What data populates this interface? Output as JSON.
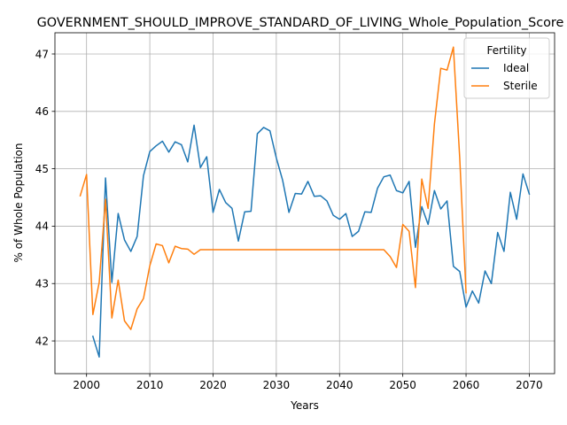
{
  "chart_data": {
    "type": "line",
    "title": "GOVERNMENT_SHOULD_IMPROVE_STANDARD_OF_LIVING_Whole_Population_Score",
    "xlabel": "Years",
    "ylabel": "% of Whole Population",
    "xlim": [
      1995,
      2074
    ],
    "ylim": [
      41.43,
      47.37
    ],
    "xticks": [
      2000,
      2010,
      2020,
      2030,
      2040,
      2050,
      2060,
      2070
    ],
    "yticks": [
      42,
      43,
      44,
      45,
      46,
      47
    ],
    "grid": true,
    "legend": {
      "title": "Fertility",
      "placement": "top-right"
    },
    "series": [
      {
        "name": "Ideal",
        "color": "#1f77b4",
        "x": [
          2001,
          2002,
          2003,
          2004,
          2005,
          2006,
          2007,
          2008,
          2009,
          2010,
          2011,
          2012,
          2013,
          2014,
          2015,
          2016,
          2017,
          2018,
          2019,
          2020,
          2021,
          2022,
          2023,
          2024,
          2025,
          2026,
          2027,
          2028,
          2029,
          2030,
          2031,
          2032,
          2033,
          2034,
          2035,
          2036,
          2037,
          2038,
          2039,
          2040,
          2041,
          2042,
          2043,
          2044,
          2045,
          2046,
          2047,
          2048,
          2049,
          2050,
          2051,
          2052,
          2053,
          2054,
          2055,
          2056,
          2057,
          2058,
          2059,
          2060,
          2061,
          2062,
          2063,
          2064,
          2065,
          2066,
          2067,
          2068,
          2069,
          2070
        ],
        "values": [
          42.08,
          41.72,
          44.84,
          43.02,
          44.22,
          43.76,
          43.56,
          43.82,
          44.88,
          45.3,
          45.4,
          45.48,
          45.29,
          45.47,
          45.42,
          45.12,
          45.76,
          45.02,
          45.21,
          44.24,
          44.64,
          44.41,
          44.31,
          43.74,
          44.25,
          44.26,
          45.61,
          45.72,
          45.66,
          45.19,
          44.8,
          44.24,
          44.57,
          44.56,
          44.78,
          44.52,
          44.53,
          44.44,
          44.19,
          44.12,
          44.22,
          43.82,
          43.91,
          44.25,
          44.24,
          44.66,
          44.86,
          44.89,
          44.62,
          44.58,
          44.78,
          43.63,
          44.34,
          44.03,
          44.62,
          44.3,
          44.44,
          43.3,
          43.21,
          42.59,
          42.87,
          42.66,
          43.22,
          43.0,
          43.89,
          43.56,
          44.59,
          44.12,
          44.91,
          44.56
        ]
      },
      {
        "name": "Sterile",
        "color": "#ff7f0e",
        "x": [
          1999,
          2000,
          2001,
          2002,
          2003,
          2004,
          2005,
          2006,
          2007,
          2008,
          2009,
          2010,
          2011,
          2012,
          2013,
          2014,
          2015,
          2016,
          2017,
          2018,
          2019,
          2020,
          2021,
          2022,
          2023,
          2024,
          2025,
          2026,
          2027,
          2028,
          2029,
          2030,
          2031,
          2032,
          2033,
          2034,
          2035,
          2036,
          2037,
          2038,
          2039,
          2040,
          2041,
          2042,
          2043,
          2044,
          2045,
          2046,
          2047,
          2048,
          2049,
          2050,
          2051,
          2052,
          2053,
          2054,
          2055,
          2056,
          2057,
          2058,
          2059,
          2060
        ],
        "values": [
          44.53,
          44.9,
          42.46,
          43.02,
          44.47,
          42.4,
          43.06,
          42.35,
          42.2,
          42.56,
          42.74,
          43.31,
          43.69,
          43.66,
          43.36,
          43.65,
          43.61,
          43.6,
          43.51,
          43.59,
          43.59,
          43.59,
          43.59,
          43.59,
          43.59,
          43.59,
          43.59,
          43.59,
          43.59,
          43.59,
          43.59,
          43.59,
          43.59,
          43.59,
          43.59,
          43.59,
          43.59,
          43.59,
          43.59,
          43.59,
          43.59,
          43.59,
          43.59,
          43.59,
          43.59,
          43.59,
          43.59,
          43.59,
          43.59,
          43.47,
          43.28,
          44.03,
          43.91,
          42.93,
          44.82,
          44.31,
          45.78,
          46.75,
          46.72,
          47.12,
          45.19,
          42.84
        ]
      }
    ]
  }
}
